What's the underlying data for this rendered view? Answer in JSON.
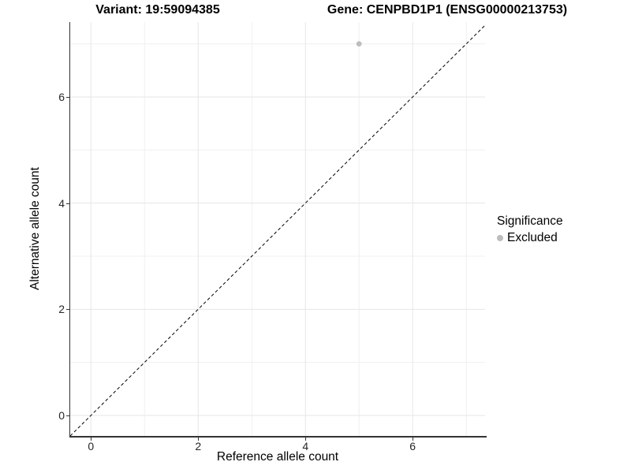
{
  "chart_data": {
    "type": "scatter",
    "title_left": "Variant: 19:59094385",
    "title_right": "Gene: CENPBD1P1 (ENSG00000213753)",
    "xlabel": "Reference allele count",
    "ylabel": "Alternative allele count",
    "xlim": [
      -0.386,
      7.35
    ],
    "ylim": [
      -0.386,
      7.41
    ],
    "x_major_ticks": [
      0,
      2,
      4,
      6
    ],
    "x_minor_ticks": [
      1,
      3,
      5,
      7
    ],
    "y_major_ticks": [
      0,
      2,
      4,
      6
    ],
    "y_minor_ticks": [
      1,
      3,
      5,
      7
    ],
    "grid": true,
    "reference_line": {
      "type": "identity",
      "style": "dashed",
      "from": [
        -0.386,
        -0.386
      ],
      "to": [
        7.41,
        7.41
      ]
    },
    "series": [
      {
        "name": "Excluded",
        "color": "#bdbdbd",
        "points": [
          {
            "x": 5,
            "y": 7
          }
        ]
      }
    ],
    "legend": {
      "title": "Significance",
      "position": "right",
      "items": [
        {
          "label": "Excluded",
          "color": "#bdbdbd"
        }
      ]
    }
  },
  "colors": {
    "grid_major": "#e6e6e6",
    "grid_minor": "#f0f0f0",
    "axis_line": "#333333",
    "reference_line": "#000000",
    "tick_text": "#262626"
  }
}
